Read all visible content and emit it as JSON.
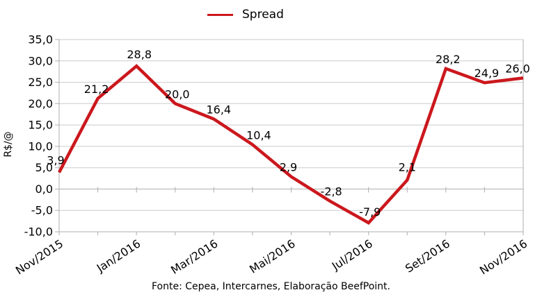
{
  "legend": {
    "label": "Spread"
  },
  "footer": {
    "source_text": "Fonte: Cepea, Intercarnes, Elaboração BeefPoint."
  },
  "chart_data": {
    "type": "line",
    "title": "",
    "legend_label": "Spread",
    "legend_position": "top-center",
    "series": [
      {
        "name": "Spread",
        "color": "#cb181d",
        "values": [
          3.9,
          21.2,
          28.8,
          20.0,
          16.4,
          10.4,
          2.9,
          -2.8,
          -7.9,
          2.1,
          28.2,
          24.9,
          26.0
        ],
        "point_labels": [
          "3,9",
          "21,2",
          "28,8",
          "20,0",
          "16,4",
          "10,4",
          "2,9",
          "-2,8",
          "-7,9",
          "2,1",
          "28,2",
          "24,9",
          "26,0"
        ]
      }
    ],
    "x_tick_labels": [
      "Nov/2015",
      "Jan/2016",
      "Mar/2016",
      "Mai/2016",
      "Jul/2016",
      "Set/2016",
      "Nov/2016"
    ],
    "x_tick_every": 2,
    "y_ticks": [
      "35,0",
      "30,0",
      "25,0",
      "20,0",
      "15,0",
      "10,0",
      "5,0",
      "0,0",
      "-5,0",
      "-10,0"
    ],
    "y_tick_values": [
      35,
      30,
      25,
      20,
      15,
      10,
      5,
      0,
      -5,
      -10
    ],
    "ylim": [
      -10,
      35
    ],
    "ylabel": "R$/@",
    "xlabel": "",
    "grid": "horizontal",
    "colors": {
      "line": "#cb181d",
      "gridline": "#cbcbcb",
      "axis": "#adadad",
      "text": "#000000",
      "background": "#ffffff"
    }
  }
}
